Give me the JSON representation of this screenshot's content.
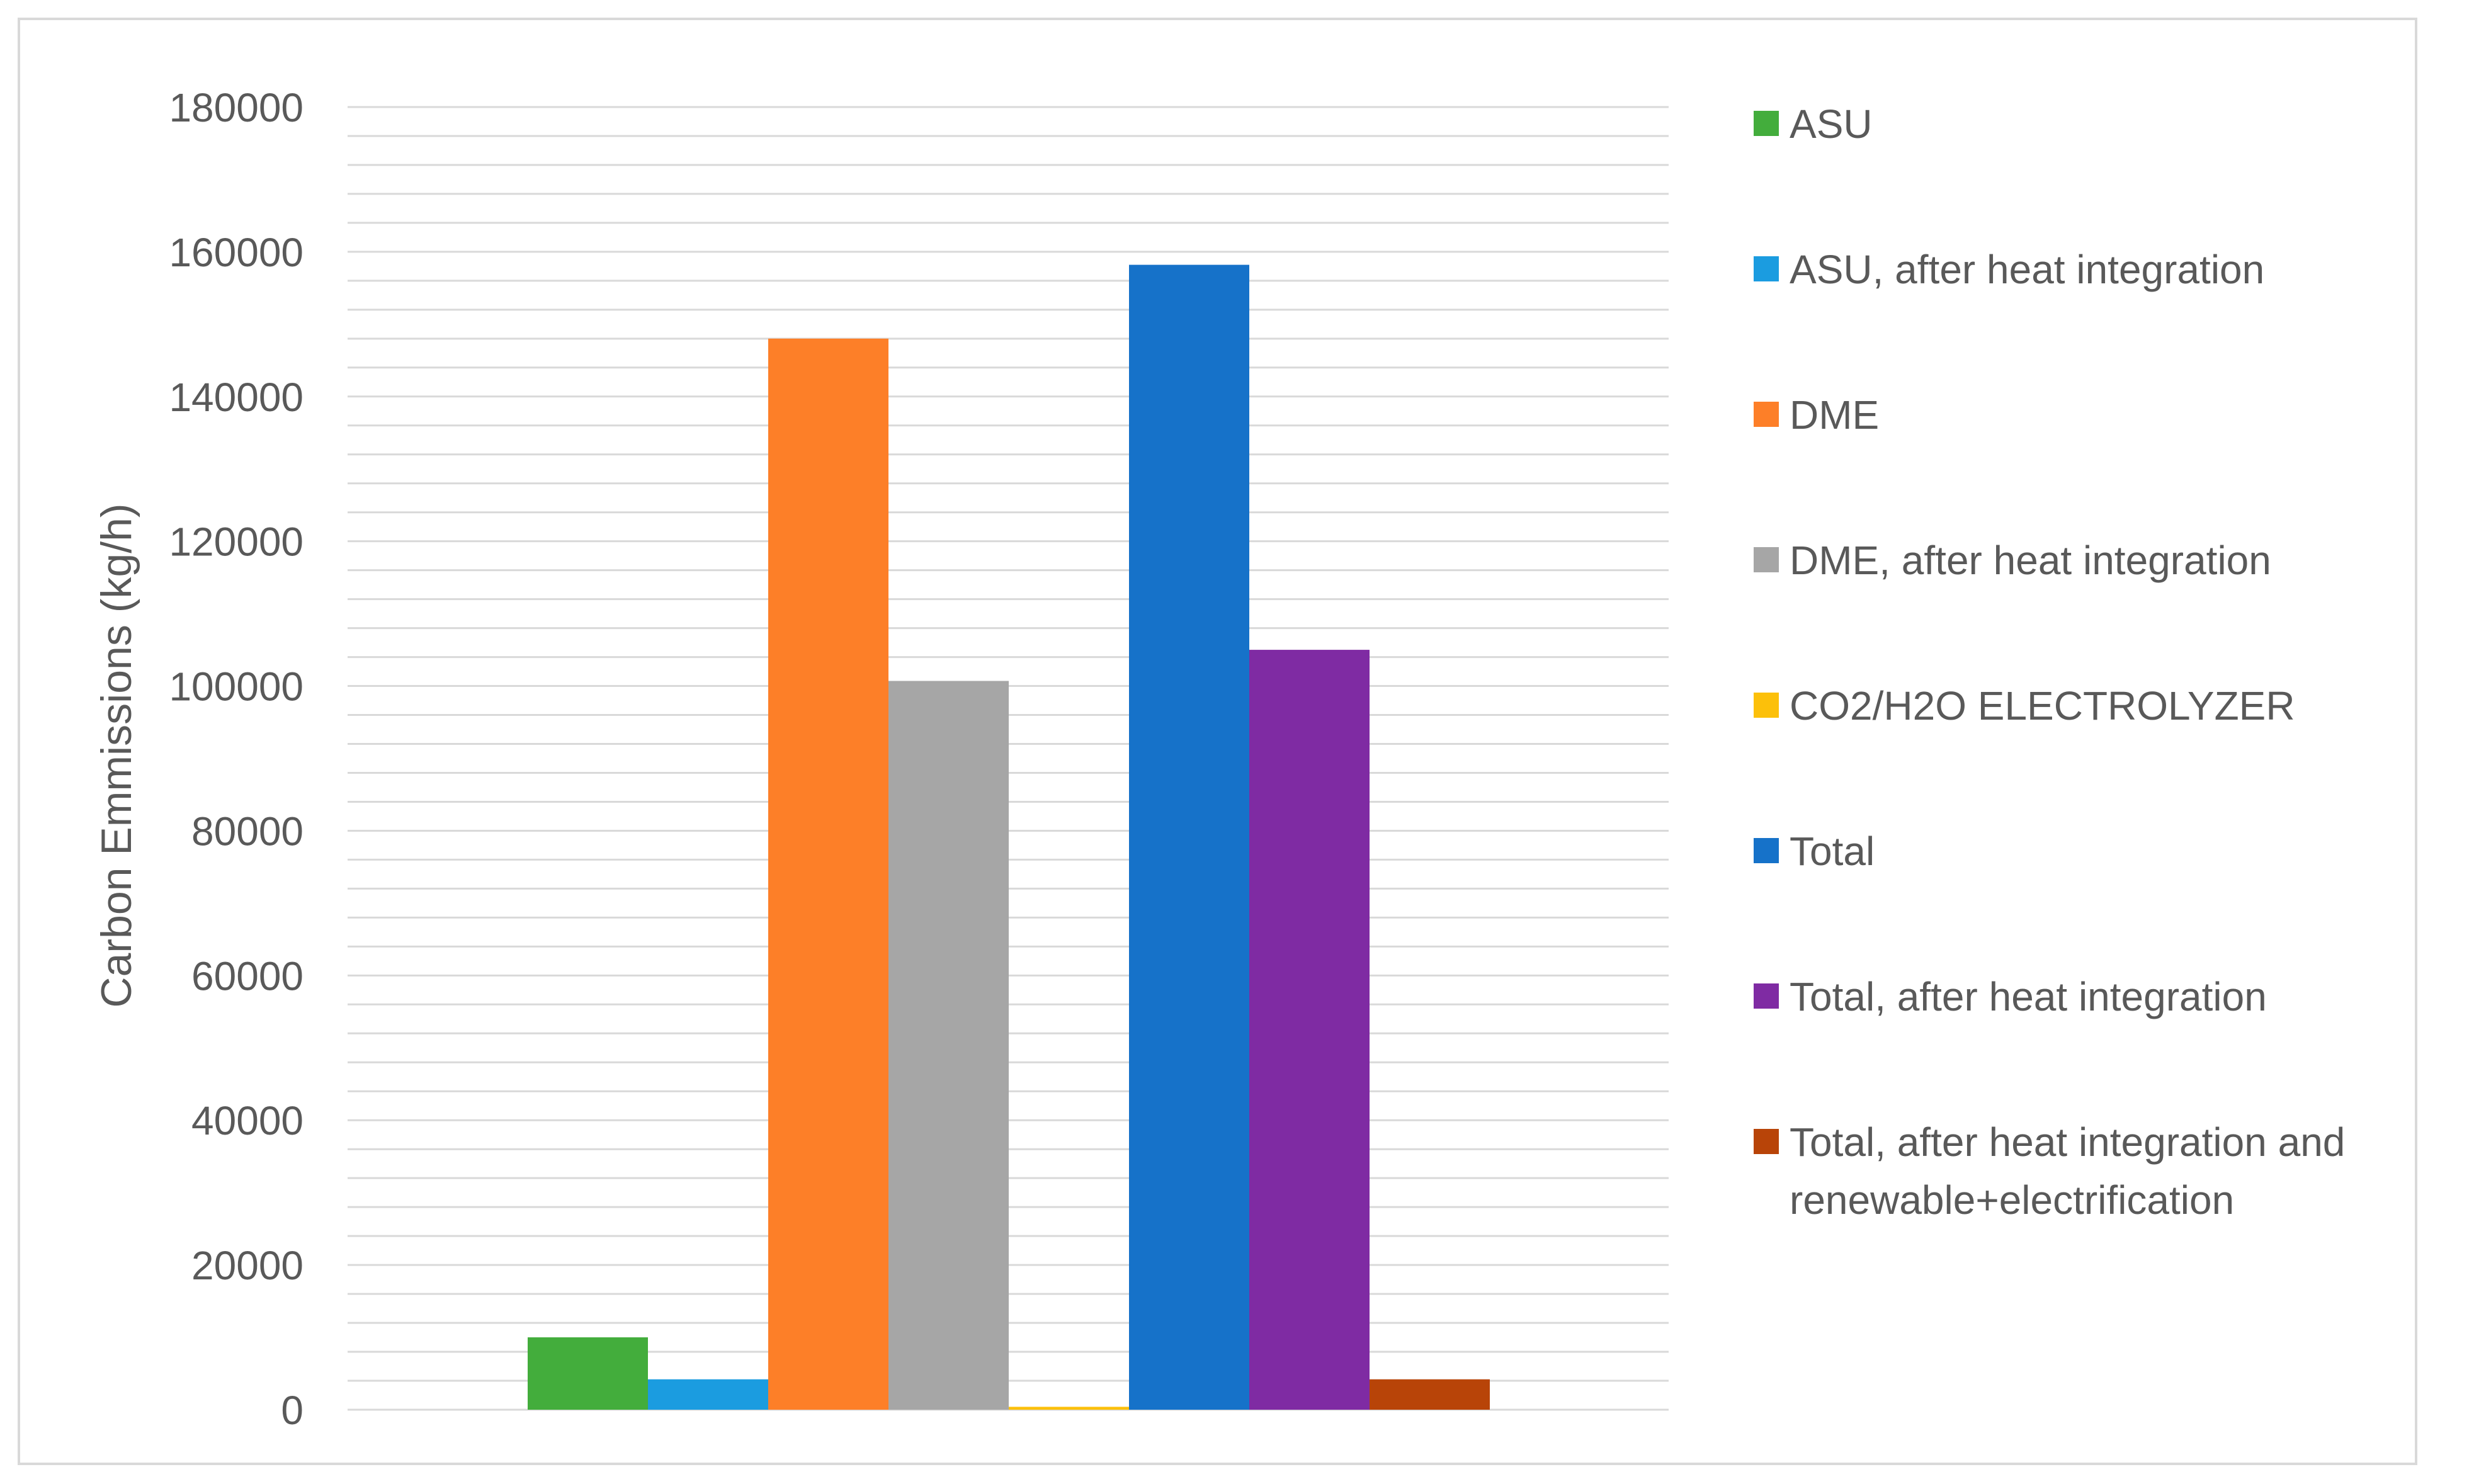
{
  "chart_data": {
    "type": "bar",
    "title": "",
    "xlabel": "",
    "ylabel": "Carbon Emmissions (kg/h)",
    "ylim": [
      0,
      180000
    ],
    "y_ticks": [
      0,
      20000,
      40000,
      60000,
      80000,
      100000,
      120000,
      140000,
      160000,
      180000
    ],
    "y_minor_step": 4000,
    "grid": true,
    "legend_position": "right",
    "series": [
      {
        "name": "ASU",
        "value": 10000,
        "color": "#43ad3c"
      },
      {
        "name": "ASU, after heat integration",
        "value": 4200,
        "color": "#1b9ce0"
      },
      {
        "name": "DME",
        "value": 148000,
        "color": "#fd7f28"
      },
      {
        "name": "DME, after heat integration",
        "value": 100700,
        "color": "#a6a6a6"
      },
      {
        "name": "CO2/H2O ELECTROLYZER",
        "value": 400,
        "color": "#fcc00a"
      },
      {
        "name": "Total",
        "value": 158200,
        "color": "#1672c9"
      },
      {
        "name": "Total, after heat integration",
        "value": 105000,
        "color": "#7f2ba3"
      },
      {
        "name": "Total, after heat integration and renewable+electrification",
        "value": 4200,
        "color": "#b84408"
      }
    ]
  }
}
